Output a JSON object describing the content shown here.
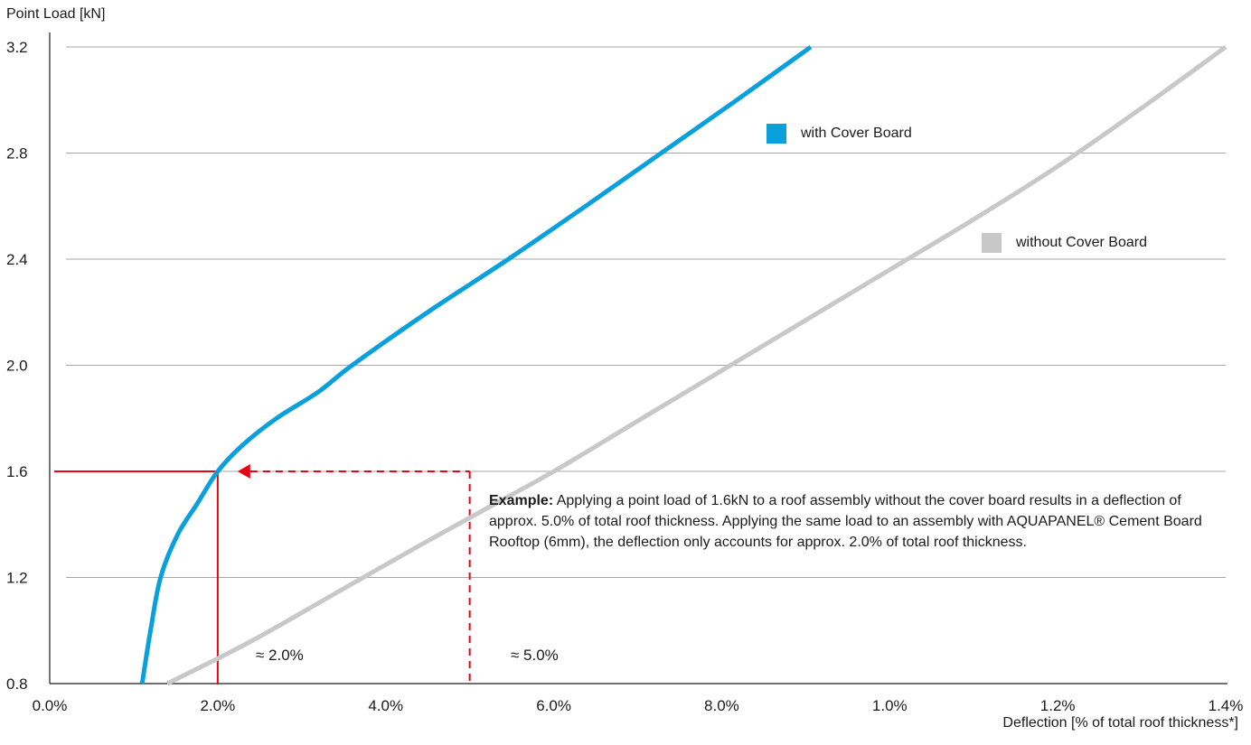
{
  "chart_data": {
    "type": "line",
    "ylabel": "Point Load [kN]",
    "xlabel": "Deflection [% of total roof thickness*]",
    "y_ticks": [
      "0.8",
      "1.2",
      "1.6",
      "2.0",
      "2.4",
      "2.8",
      "3.2"
    ],
    "y_tick_values": [
      0.8,
      1.2,
      1.6,
      2.0,
      2.4,
      2.8,
      3.2
    ],
    "x_ticks": [
      "0.0%",
      "2.0%",
      "4.0%",
      "6.0%",
      "8.0%",
      "1.0%",
      "1.2%",
      "1.4%"
    ],
    "x_tick_positions": [
      0,
      1,
      2,
      3,
      4,
      5,
      6,
      7
    ],
    "ylim": [
      0.8,
      3.2
    ],
    "xlim_tick_index": [
      0,
      7
    ],
    "grid": "horizontal",
    "series": [
      {
        "name": "with Cover Board",
        "color": "#0aa0dc",
        "points": [
          [
            0.55,
            0.8
          ],
          [
            0.6,
            1.0
          ],
          [
            0.66,
            1.2
          ],
          [
            0.76,
            1.36
          ],
          [
            0.88,
            1.48
          ],
          [
            1.0,
            1.6
          ],
          [
            1.15,
            1.7
          ],
          [
            1.35,
            1.8
          ],
          [
            1.6,
            1.9
          ],
          [
            1.8,
            2.0
          ],
          [
            2.25,
            2.2
          ],
          [
            2.73,
            2.4
          ],
          [
            3.19,
            2.6
          ],
          [
            3.64,
            2.8
          ],
          [
            4.09,
            3.0
          ],
          [
            4.53,
            3.2
          ]
        ]
      },
      {
        "name": "without Cover Board",
        "color": "#c8c8c8",
        "points": [
          [
            0.7,
            0.8
          ],
          [
            1.2,
            0.96
          ],
          [
            1.7,
            1.14
          ],
          [
            2.2,
            1.32
          ],
          [
            2.6,
            1.46
          ],
          [
            3.0,
            1.6
          ],
          [
            3.5,
            1.79
          ],
          [
            4.0,
            1.98
          ],
          [
            4.5,
            2.17
          ],
          [
            5.0,
            2.36
          ],
          [
            5.5,
            2.55
          ],
          [
            6.0,
            2.75
          ],
          [
            6.5,
            2.97
          ],
          [
            7.0,
            3.2
          ]
        ]
      }
    ],
    "annotations": {
      "with_value": "≈ 2.0%",
      "without_value": "≈ 5.0%",
      "example_bold": "Example:",
      "example_text": " Applying a point load of 1.6kN to a roof assembly without the cover board results in a deflection of approx. 5.0% of total roof thickness.  Applying the same load to an assembly with AQUAPANEL® Cement Board Rooftop (6mm), the deflection only  accounts for approx. 2.0% of total roof thickness.",
      "reference_load": 1.6,
      "with_deflection_tick_index": 1.0,
      "without_deflection_tick_index": 2.5,
      "line_color": "#e30613"
    },
    "legend_placement": "right, inside plot"
  }
}
